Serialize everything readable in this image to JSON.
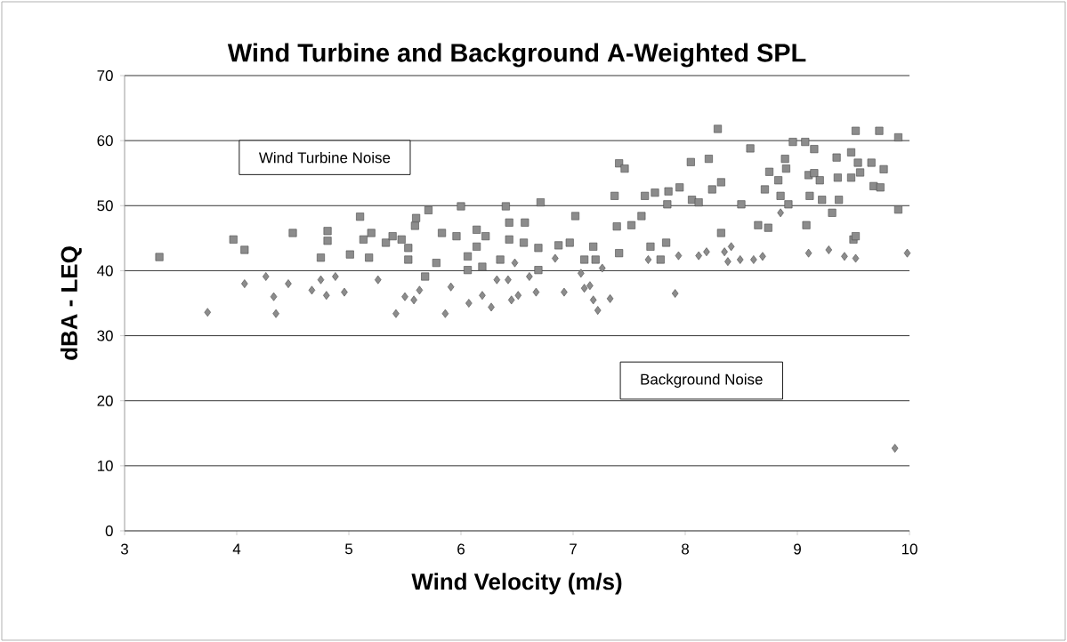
{
  "chart_data": {
    "type": "scatter",
    "title": "Wind Turbine and Background A-Weighted SPL",
    "xlabel": "Wind Velocity (m/s)",
    "ylabel": "dBA - LEQ",
    "xlim": [
      3,
      10
    ],
    "xticks": [
      3,
      4,
      5,
      6,
      7,
      8,
      9,
      10
    ],
    "ylim": [
      0,
      70
    ],
    "yticks": [
      0,
      10,
      20,
      30,
      40,
      50,
      60,
      70
    ],
    "grid": "y",
    "annotations": [
      "Wind Turbine Noise",
      "Background Noise"
    ],
    "series": [
      {
        "color": "#8c8c8c",
        "marker": "square",
        "x": [
          3.31,
          3.97,
          4.07,
          4.5,
          4.75,
          4.81,
          4.81,
          5.01,
          5.1,
          5.13,
          5.18,
          5.2,
          5.33,
          5.39,
          5.47,
          5.53,
          5.53,
          5.59,
          5.6,
          5.71,
          5.68,
          5.83,
          5.78,
          6.0,
          5.96,
          6.06,
          6.06,
          6.14,
          6.22,
          6.14,
          6.19,
          6.4,
          6.43,
          6.43,
          6.35,
          6.56,
          6.57,
          6.71,
          6.69,
          6.69,
          6.87,
          6.97,
          7.02,
          7.1,
          7.18,
          7.2,
          7.37,
          7.41,
          7.46,
          7.39,
          7.41,
          7.52,
          7.61,
          7.64,
          7.73,
          7.69,
          7.78,
          7.83,
          7.85,
          7.84,
          7.95,
          8.05,
          8.06,
          8.12,
          8.21,
          8.24,
          8.29,
          8.32,
          8.32,
          8.5,
          8.58,
          8.65,
          8.71,
          8.74,
          8.75,
          8.83,
          8.85,
          8.89,
          8.9,
          8.92,
          8.96,
          9.07,
          9.08,
          9.1,
          9.11,
          9.15,
          9.15,
          9.2,
          9.22,
          9.31,
          9.35,
          9.36,
          9.37,
          9.48,
          9.48,
          9.5,
          9.52,
          9.52,
          9.54,
          9.56,
          9.66,
          9.68,
          9.73,
          9.74,
          9.77,
          9.9,
          9.9
        ],
        "values": [
          42.1,
          44.8,
          43.2,
          45.8,
          42.0,
          46.1,
          44.6,
          42.5,
          48.3,
          44.8,
          42.0,
          45.8,
          44.3,
          45.3,
          44.8,
          43.5,
          41.7,
          46.9,
          48.1,
          49.3,
          39.1,
          45.8,
          41.2,
          49.9,
          45.3,
          42.2,
          40.1,
          46.3,
          45.3,
          43.7,
          40.6,
          49.9,
          47.4,
          44.8,
          41.7,
          44.3,
          47.4,
          50.5,
          43.5,
          40.1,
          43.9,
          44.3,
          48.4,
          41.7,
          43.7,
          41.7,
          51.5,
          56.5,
          55.7,
          46.8,
          42.7,
          47.0,
          48.4,
          51.5,
          52.0,
          43.7,
          41.7,
          44.3,
          52.2,
          50.2,
          52.8,
          56.7,
          50.9,
          50.5,
          57.2,
          52.5,
          61.8,
          53.6,
          45.8,
          50.2,
          58.8,
          47.0,
          52.5,
          46.6,
          55.2,
          53.9,
          51.5,
          57.2,
          55.7,
          50.2,
          59.8,
          59.8,
          47.0,
          54.7,
          51.5,
          58.7,
          55.0,
          53.9,
          50.9,
          48.9,
          57.4,
          54.3,
          50.9,
          58.2,
          54.3,
          44.8,
          61.5,
          45.3,
          56.6,
          55.1,
          56.6,
          53.0,
          61.5,
          52.8,
          55.6,
          60.5,
          49.4
        ]
      },
      {
        "color": "#8c8c8c",
        "marker": "diamond",
        "x": [
          3.74,
          4.07,
          4.26,
          4.33,
          4.35,
          4.46,
          4.67,
          4.75,
          4.8,
          4.88,
          4.96,
          5.26,
          5.42,
          5.5,
          5.58,
          5.63,
          5.86,
          5.91,
          6.07,
          6.19,
          6.27,
          6.32,
          6.42,
          6.48,
          6.45,
          6.51,
          6.61,
          6.67,
          6.84,
          6.92,
          7.07,
          7.1,
          7.15,
          7.18,
          7.22,
          7.26,
          7.33,
          7.67,
          7.91,
          7.94,
          8.12,
          8.19,
          8.35,
          8.38,
          8.41,
          8.49,
          8.61,
          8.69,
          8.85,
          9.1,
          9.28,
          9.42,
          9.52,
          9.87,
          9.98
        ],
        "values": [
          33.6,
          38.0,
          39.1,
          36.0,
          33.4,
          38.0,
          37.0,
          38.6,
          36.2,
          39.1,
          36.7,
          38.6,
          33.4,
          36.0,
          35.5,
          37.0,
          33.4,
          37.5,
          35.0,
          36.2,
          34.4,
          38.6,
          38.6,
          41.2,
          35.5,
          36.2,
          39.1,
          36.7,
          41.9,
          36.7,
          39.6,
          37.3,
          37.7,
          35.5,
          33.9,
          40.4,
          35.7,
          41.7,
          36.5,
          42.3,
          42.3,
          42.9,
          42.9,
          41.4,
          43.7,
          41.7,
          41.7,
          42.2,
          48.9,
          42.7,
          43.2,
          42.2,
          41.9,
          12.7,
          42.7
        ]
      }
    ]
  }
}
